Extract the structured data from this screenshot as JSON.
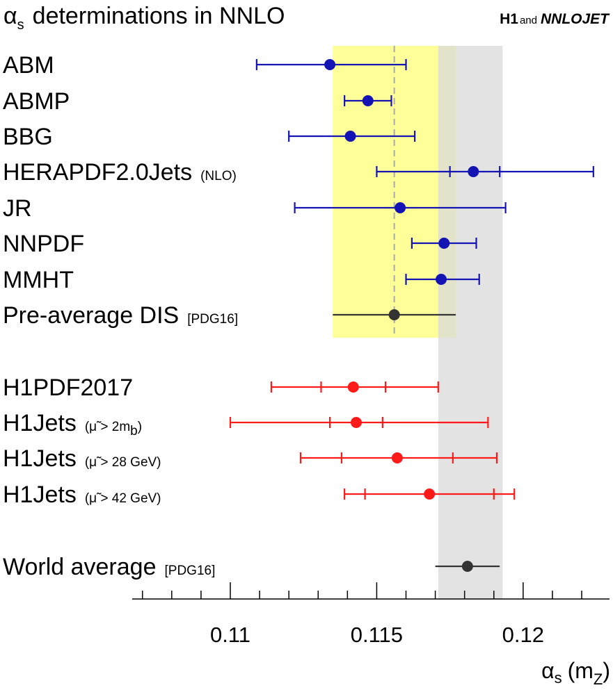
{
  "chart_data": {
    "type": "scatter",
    "title": "determinations in NNLO",
    "title_symbol": "α",
    "title_symbol_sub": "s",
    "logo": {
      "h1": "H1",
      "and": "and",
      "nnlojet": "NNLOJET"
    },
    "xlabel_symbol": "α",
    "xlabel_sub": "s",
    "xlabel_paren_open": "(m",
    "xlabel_paren_sub": "Z",
    "xlabel_paren_close": ")",
    "xlim": [
      0.10665,
      0.12295
    ],
    "xticks": [
      {
        "value": 0.11,
        "label": "0.11"
      },
      {
        "value": 0.115,
        "label": "0.115"
      },
      {
        "value": 0.12,
        "label": "0.12"
      }
    ],
    "minor_tick_step": 0.001,
    "bands": [
      {
        "name": "yellow-band",
        "x_min": 0.1135,
        "x_max": 0.1177,
        "color": "#ffff99"
      },
      {
        "name": "grey-band",
        "x_min": 0.1171,
        "x_max": 0.1193,
        "color": "#d9d9d9"
      }
    ],
    "reference_line": 0.1156,
    "series": [
      {
        "name": "ABM",
        "note": "",
        "group": "pdf",
        "value": 0.1134,
        "err_low": 0.1109,
        "err_high": 0.116,
        "inner_low": null,
        "inner_high": null,
        "color": "#1414b4"
      },
      {
        "name": "ABMP",
        "note": "",
        "group": "pdf",
        "value": 0.1147,
        "err_low": 0.1139,
        "err_high": 0.1155,
        "inner_low": null,
        "inner_high": null,
        "color": "#1414b4"
      },
      {
        "name": "BBG",
        "note": "",
        "group": "pdf",
        "value": 0.1141,
        "err_low": 0.112,
        "err_high": 0.1163,
        "inner_low": null,
        "inner_high": null,
        "color": "#1414b4"
      },
      {
        "name": "HERAPDF2.0Jets",
        "note": "(NLO)",
        "group": "pdf",
        "value": 0.1183,
        "err_low": 0.115,
        "err_high": 0.1224,
        "inner_low": 0.1175,
        "inner_high": 0.1192,
        "color": "#1414b4"
      },
      {
        "name": "JR",
        "note": "",
        "group": "pdf",
        "value": 0.1158,
        "err_low": 0.1122,
        "err_high": 0.1194,
        "inner_low": null,
        "inner_high": null,
        "color": "#1414b4"
      },
      {
        "name": "NNPDF",
        "note": "",
        "group": "pdf",
        "value": 0.1173,
        "err_low": 0.1162,
        "err_high": 0.1184,
        "inner_low": null,
        "inner_high": null,
        "color": "#1414b4"
      },
      {
        "name": "MMHT",
        "note": "",
        "group": "pdf",
        "value": 0.1172,
        "err_low": 0.116,
        "err_high": 0.1185,
        "inner_low": null,
        "inner_high": null,
        "color": "#1414b4"
      },
      {
        "name": "Pre-average DIS",
        "note": "[PDG16]",
        "group": "average",
        "value": 0.1156,
        "err_low": 0.1135,
        "err_high": 0.1177,
        "inner_low": null,
        "inner_high": null,
        "color": "#333333"
      },
      {
        "name": "H1PDF2017",
        "note": "",
        "group": "h1",
        "value": 0.1142,
        "err_low": 0.1114,
        "err_high": 0.1171,
        "inner_low": 0.1131,
        "inner_high": 0.1153,
        "color": "#ff1a1a"
      },
      {
        "name": "H1Jets",
        "note": "(μ̃ > 2m_b)",
        "note_main": "(μ̃ > 2m",
        "note_sub": "b",
        "note_close": ")",
        "group": "h1",
        "value": 0.1143,
        "err_low": 0.11,
        "err_high": 0.1188,
        "inner_low": 0.1134,
        "inner_high": 0.1152,
        "color": "#ff1a1a"
      },
      {
        "name": "H1Jets",
        "note": "(μ̃ > 28 GeV)",
        "group": "h1",
        "value": 0.1157,
        "err_low": 0.1124,
        "err_high": 0.1191,
        "inner_low": 0.1138,
        "inner_high": 0.1176,
        "color": "#ff1a1a"
      },
      {
        "name": "H1Jets",
        "note": "(μ̃ > 42 GeV)",
        "group": "h1",
        "value": 0.1168,
        "err_low": 0.1139,
        "err_high": 0.1197,
        "inner_low": 0.1146,
        "inner_high": 0.119,
        "color": "#ff1a1a"
      },
      {
        "name": "World average",
        "note": "[PDG16]",
        "group": "average",
        "value": 0.1181,
        "err_low": 0.117,
        "err_high": 0.1192,
        "inner_low": null,
        "inner_high": null,
        "color": "#333333"
      }
    ]
  }
}
